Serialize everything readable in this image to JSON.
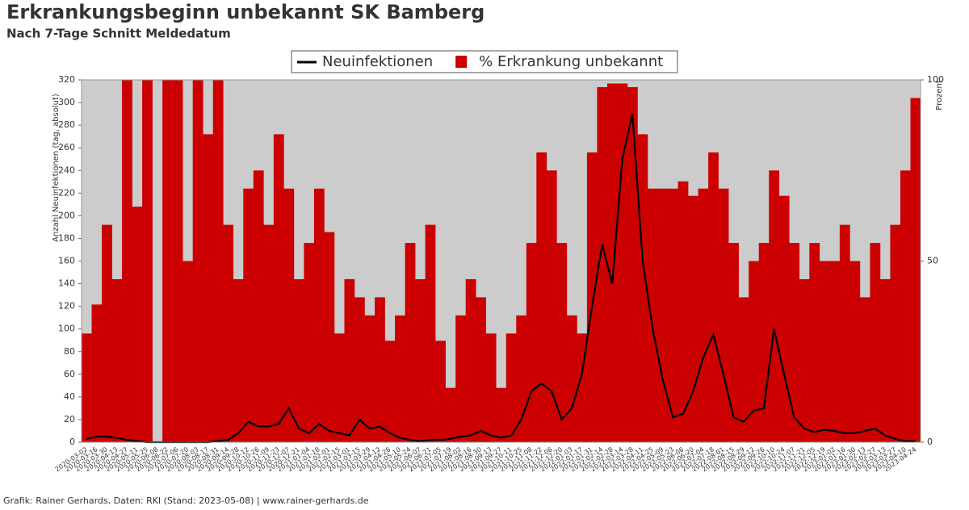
{
  "chart_data": {
    "type": "bar-line",
    "title": "Erkrankungsbeginn unbekannt SK Bamberg",
    "subtitle": "Nach 7-Tage Schnitt Meldedatum",
    "y_label": "Anzahl Neuinfektionen (tag, absolut)",
    "y2_label": "Prozent",
    "footer": "Grafik: Rainer Gerhards, Daten: RKI (Stand: 2023-05-08) | www.rainer-gerhards.de",
    "categories": [
      "2020-03-02",
      "2020-03-16",
      "2020-03-30",
      "2020-04-13",
      "2020-04-27",
      "2020-05-11",
      "2020-05-25",
      "2020-06-08",
      "2020-06-22",
      "2020-07-06",
      "2020-07-20",
      "2020-08-03",
      "2020-08-17",
      "2020-08-31",
      "2020-09-14",
      "2020-09-28",
      "2020-10-12",
      "2020-10-26",
      "2020-11-09",
      "2020-11-23",
      "2020-12-07",
      "2020-12-21",
      "2021-01-04",
      "2021-01-18",
      "2021-02-01",
      "2021-02-15",
      "2021-03-01",
      "2021-03-15",
      "2021-03-29",
      "2021-04-12",
      "2021-04-26",
      "2021-05-10",
      "2021-05-24",
      "2021-06-07",
      "2021-06-21",
      "2021-07-05",
      "2021-07-19",
      "2021-08-02",
      "2021-08-16",
      "2021-08-30",
      "2021-09-13",
      "2021-09-27",
      "2021-10-11",
      "2021-10-25",
      "2021-11-08",
      "2021-11-22",
      "2021-12-06",
      "2021-12-20",
      "2022-01-03",
      "2022-01-17",
      "2022-01-31",
      "2022-02-14",
      "2022-02-28",
      "2022-03-14",
      "2022-03-28",
      "2022-04-11",
      "2022-04-25",
      "2022-05-09",
      "2022-05-23",
      "2022-06-06",
      "2022-06-20",
      "2022-07-04",
      "2022-07-18",
      "2022-08-01",
      "2022-08-15",
      "2022-08-29",
      "2022-09-12",
      "2022-09-26",
      "2022-10-10",
      "2022-10-24",
      "2022-11-07",
      "2022-11-21",
      "2022-12-05",
      "2022-12-19",
      "2023-01-02",
      "2023-01-16",
      "2023-01-30",
      "2023-02-13",
      "2023-02-27",
      "2023-03-13",
      "2023-03-27",
      "2023-04-10",
      "2023-04-24"
    ],
    "series": [
      {
        "name": "Neuinfektionen",
        "type": "line",
        "color": "#000000",
        "axis": "y",
        "values": [
          3,
          5,
          5,
          4,
          2,
          1,
          0,
          0,
          0,
          0,
          0,
          0,
          0,
          1,
          2,
          8,
          18,
          14,
          14,
          16,
          30,
          12,
          8,
          16,
          10,
          8,
          6,
          20,
          12,
          14,
          8,
          4,
          2,
          1,
          2,
          2,
          3,
          5,
          6,
          10,
          6,
          4,
          6,
          20,
          45,
          52,
          45,
          20,
          30,
          60,
          120,
          175,
          140,
          250,
          290,
          160,
          100,
          55,
          22,
          25,
          45,
          75,
          95,
          60,
          22,
          18,
          28,
          30,
          100,
          60,
          22,
          12,
          9,
          11,
          10,
          8,
          8,
          10,
          12,
          6,
          3,
          1,
          1
        ]
      },
      {
        "name": "% Erkrankung unbekannt",
        "type": "bar",
        "color": "#cc0000",
        "axis": "y2",
        "values": [
          30,
          38,
          60,
          45,
          100,
          65,
          100,
          0,
          100,
          100,
          50,
          100,
          85,
          100,
          60,
          45,
          70,
          75,
          60,
          85,
          70,
          45,
          55,
          70,
          58,
          30,
          45,
          40,
          35,
          40,
          28,
          35,
          55,
          45,
          60,
          28,
          15,
          35,
          45,
          40,
          30,
          15,
          30,
          35,
          55,
          80,
          75,
          55,
          35,
          30,
          80,
          98,
          99,
          99,
          98,
          85,
          70,
          70,
          70,
          72,
          68,
          70,
          80,
          70,
          55,
          40,
          50,
          55,
          75,
          68,
          55,
          45,
          55,
          50,
          50,
          60,
          50,
          40,
          55,
          45,
          60,
          75,
          95
        ]
      }
    ],
    "ylim": [
      0,
      320
    ],
    "yticks": [
      0,
      20,
      40,
      60,
      80,
      100,
      120,
      140,
      160,
      180,
      200,
      220,
      240,
      260,
      280,
      300,
      320
    ],
    "y2lim": [
      0,
      100
    ],
    "y2ticks": [
      0,
      50,
      100
    ],
    "background": "#cccccc"
  }
}
